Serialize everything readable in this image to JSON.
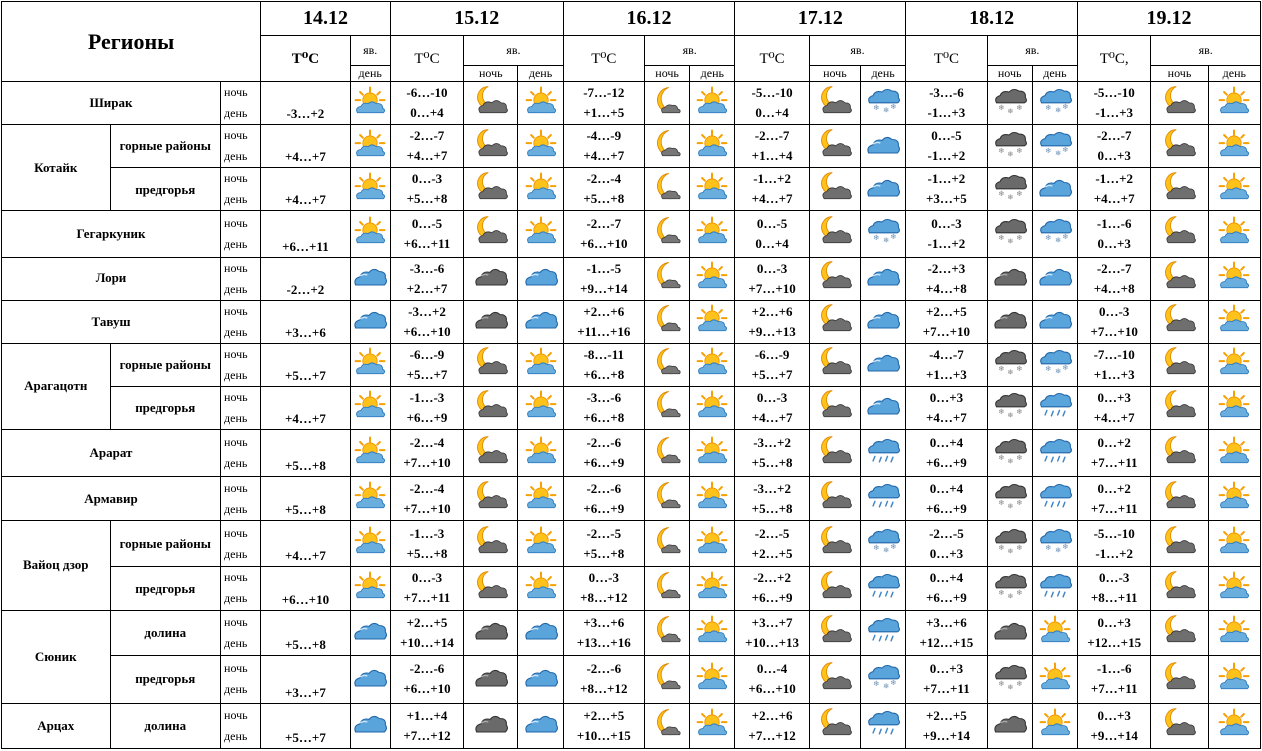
{
  "header": {
    "regions_label": "Регионы",
    "dates": [
      "14.12",
      "15.12",
      "16.12",
      "17.12",
      "18.12",
      "19.12"
    ],
    "temp_label": "T⁰C",
    "temp_label_last": "T⁰C,",
    "phenomena_label": "яв.",
    "night_label": "ночь",
    "day_label": "день"
  },
  "rows": [
    {
      "region": "Ширак",
      "sub": "",
      "first": "-3…+2",
      "first_icon": "sun-cloud-icon",
      "days": [
        {
          "t_night": "-6…-10",
          "t_day": "0…+4",
          "n_icon": "moon-cloud-icon",
          "d_icon": "sun-cloud-icon"
        },
        {
          "t_night": "-7…-12",
          "t_day": "+1…+5",
          "n_icon": "moon-icon",
          "d_icon": "sun-cloud-icon"
        },
        {
          "t_night": "-5…-10",
          "t_day": "0…+4",
          "n_icon": "moon-cloud-icon",
          "d_icon": "cloud-snow-icon"
        },
        {
          "t_night": "-3…-6",
          "t_day": "-1…+3",
          "n_icon": "dark-cloud-snow-icon",
          "d_icon": "cloud-snow-icon"
        },
        {
          "t_night": "-5…-10",
          "t_day": "-1…+3",
          "n_icon": "moon-cloud-icon",
          "d_icon": "sun-cloud-icon"
        }
      ]
    },
    {
      "region": "Котайк",
      "sub": "горные районы",
      "first": "+4…+7",
      "first_icon": "sun-cloud-icon",
      "days": [
        {
          "t_night": "-2…-7",
          "t_day": "+4…+7",
          "n_icon": "moon-cloud-icon",
          "d_icon": "sun-cloud-icon"
        },
        {
          "t_night": "-4…-9",
          "t_day": "+4…+7",
          "n_icon": "moon-icon",
          "d_icon": "sun-cloud-icon"
        },
        {
          "t_night": "-2…-7",
          "t_day": "+1…+4",
          "n_icon": "moon-cloud-icon",
          "d_icon": "cloud-icon"
        },
        {
          "t_night": "0…-5",
          "t_day": "-1…+2",
          "n_icon": "dark-cloud-snow-icon",
          "d_icon": "cloud-snow-icon"
        },
        {
          "t_night": "-2…-7",
          "t_day": "0…+3",
          "n_icon": "moon-cloud-icon",
          "d_icon": "sun-cloud-icon"
        }
      ]
    },
    {
      "region": "Котайк",
      "sub": "предгорья",
      "first": "+4…+7",
      "first_icon": "sun-cloud-icon",
      "days": [
        {
          "t_night": "0…-3",
          "t_day": "+5…+8",
          "n_icon": "moon-cloud-icon",
          "d_icon": "sun-cloud-icon"
        },
        {
          "t_night": "-2…-4",
          "t_day": "+5…+8",
          "n_icon": "moon-icon",
          "d_icon": "sun-cloud-icon"
        },
        {
          "t_night": "-1…+2",
          "t_day": "+4…+7",
          "n_icon": "moon-cloud-icon",
          "d_icon": "cloud-icon"
        },
        {
          "t_night": "-1…+2",
          "t_day": "+3…+5",
          "n_icon": "dark-cloud-snow-icon",
          "d_icon": "cloud-icon"
        },
        {
          "t_night": "-1…+2",
          "t_day": "+4…+7",
          "n_icon": "moon-cloud-icon",
          "d_icon": "sun-cloud-icon"
        }
      ]
    },
    {
      "region": "Гегаркуник",
      "sub": "",
      "first": "+6…+11",
      "first_icon": "sun-cloud-icon",
      "days": [
        {
          "t_night": "0…-5",
          "t_day": "+6…+11",
          "n_icon": "moon-cloud-icon",
          "d_icon": "sun-cloud-icon"
        },
        {
          "t_night": "-2…-7",
          "t_day": "+6…+10",
          "n_icon": "moon-icon",
          "d_icon": "sun-cloud-icon"
        },
        {
          "t_night": "0…-5",
          "t_day": "0…+4",
          "n_icon": "moon-cloud-icon",
          "d_icon": "cloud-snow-icon"
        },
        {
          "t_night": "0…-3",
          "t_day": "-1…+2",
          "n_icon": "dark-cloud-snow-icon",
          "d_icon": "cloud-snow-icon"
        },
        {
          "t_night": "-1…-6",
          "t_day": "0…+3",
          "n_icon": "moon-cloud-icon",
          "d_icon": "sun-cloud-icon"
        }
      ]
    },
    {
      "region": "Лори",
      "sub": "",
      "first": "-2…+2",
      "first_icon": "cloud-icon",
      "days": [
        {
          "t_night": "-3…-6",
          "t_day": "+2…+7",
          "n_icon": "dark-cloud-icon",
          "d_icon": "cloud-icon"
        },
        {
          "t_night": "-1…-5",
          "t_day": "+9…+14",
          "n_icon": "moon-icon",
          "d_icon": "sun-cloud-icon"
        },
        {
          "t_night": "0…-3",
          "t_day": "+7…+10",
          "n_icon": "moon-cloud-icon",
          "d_icon": "cloud-icon"
        },
        {
          "t_night": "-2…+3",
          "t_day": "+4…+8",
          "n_icon": "dark-cloud-icon",
          "d_icon": "cloud-icon"
        },
        {
          "t_night": "-2…-7",
          "t_day": "+4…+8",
          "n_icon": "moon-cloud-icon",
          "d_icon": "sun-cloud-icon"
        }
      ]
    },
    {
      "region": "Тавуш",
      "sub": "",
      "first": "+3…+6",
      "first_icon": "cloud-icon",
      "days": [
        {
          "t_night": "-3…+2",
          "t_day": "+6…+10",
          "n_icon": "dark-cloud-icon",
          "d_icon": "cloud-icon"
        },
        {
          "t_night": "+2…+6",
          "t_day": "+11…+16",
          "n_icon": "moon-icon",
          "d_icon": "sun-cloud-icon"
        },
        {
          "t_night": "+2…+6",
          "t_day": "+9…+13",
          "n_icon": "moon-cloud-icon",
          "d_icon": "cloud-icon"
        },
        {
          "t_night": "+2…+5",
          "t_day": "+7…+10",
          "n_icon": "dark-cloud-icon",
          "d_icon": "cloud-icon"
        },
        {
          "t_night": "0…-3",
          "t_day": "+7…+10",
          "n_icon": "moon-cloud-icon",
          "d_icon": "sun-cloud-icon"
        }
      ]
    },
    {
      "region": "Арагацотн",
      "sub": "горные районы",
      "first": "+5…+7",
      "first_icon": "sun-cloud-icon",
      "days": [
        {
          "t_night": "-6…-9",
          "t_day": "+5…+7",
          "n_icon": "moon-cloud-icon",
          "d_icon": "sun-cloud-icon"
        },
        {
          "t_night": "-8…-11",
          "t_day": "+6…+8",
          "n_icon": "moon-icon",
          "d_icon": "sun-cloud-icon"
        },
        {
          "t_night": "-6…-9",
          "t_day": "+5…+7",
          "n_icon": "moon-cloud-icon",
          "d_icon": "cloud-icon"
        },
        {
          "t_night": "-4…-7",
          "t_day": "+1…+3",
          "n_icon": "dark-cloud-snow-icon",
          "d_icon": "cloud-snow-icon"
        },
        {
          "t_night": "-7…-10",
          "t_day": "+1…+3",
          "n_icon": "moon-cloud-icon",
          "d_icon": "sun-cloud-icon"
        }
      ]
    },
    {
      "region": "Арагацотн",
      "sub": "предгорья",
      "first": "+4…+7",
      "first_icon": "sun-cloud-icon",
      "days": [
        {
          "t_night": "-1…-3",
          "t_day": "+6…+9",
          "n_icon": "moon-cloud-icon",
          "d_icon": "sun-cloud-icon"
        },
        {
          "t_night": "-3…-6",
          "t_day": "+6…+8",
          "n_icon": "moon-icon",
          "d_icon": "sun-cloud-icon"
        },
        {
          "t_night": "0…-3",
          "t_day": "+4…+7",
          "n_icon": "moon-cloud-icon",
          "d_icon": "cloud-icon"
        },
        {
          "t_night": "0…+3",
          "t_day": "+4…+7",
          "n_icon": "dark-cloud-snow-icon",
          "d_icon": "cloud-rain-icon"
        },
        {
          "t_night": "0…+3",
          "t_day": "+4…+7",
          "n_icon": "moon-cloud-icon",
          "d_icon": "sun-cloud-icon"
        }
      ]
    },
    {
      "region": "Арарат",
      "sub": "",
      "first": "+5…+8",
      "first_icon": "sun-cloud-icon",
      "days": [
        {
          "t_night": "-2…-4",
          "t_day": "+7…+10",
          "n_icon": "moon-cloud-icon",
          "d_icon": "sun-cloud-icon"
        },
        {
          "t_night": "-2…-6",
          "t_day": "+6…+9",
          "n_icon": "moon-icon",
          "d_icon": "sun-cloud-icon"
        },
        {
          "t_night": "-3…+2",
          "t_day": "+5…+8",
          "n_icon": "moon-cloud-icon",
          "d_icon": "cloud-rain-icon"
        },
        {
          "t_night": "0…+4",
          "t_day": "+6…+9",
          "n_icon": "dark-cloud-snow-icon",
          "d_icon": "cloud-rain-icon"
        },
        {
          "t_night": "0…+2",
          "t_day": "+7…+11",
          "n_icon": "moon-cloud-icon",
          "d_icon": "sun-cloud-icon"
        }
      ]
    },
    {
      "region": "Армавир",
      "sub": "",
      "first": "+5…+8",
      "first_icon": "sun-cloud-icon",
      "days": [
        {
          "t_night": "-2…-4",
          "t_day": "+7…+10",
          "n_icon": "moon-cloud-icon",
          "d_icon": "sun-cloud-icon"
        },
        {
          "t_night": "-2…-6",
          "t_day": "+6…+9",
          "n_icon": "moon-icon",
          "d_icon": "sun-cloud-icon"
        },
        {
          "t_night": "-3…+2",
          "t_day": "+5…+8",
          "n_icon": "moon-cloud-icon",
          "d_icon": "cloud-rain-icon"
        },
        {
          "t_night": "0…+4",
          "t_day": "+6…+9",
          "n_icon": "dark-cloud-snow-icon",
          "d_icon": "cloud-rain-icon"
        },
        {
          "t_night": "0…+2",
          "t_day": "+7…+11",
          "n_icon": "moon-cloud-icon",
          "d_icon": "sun-cloud-icon"
        }
      ]
    },
    {
      "region": "Вайоц дзор",
      "sub": "горные районы",
      "first": "+4…+7",
      "first_icon": "sun-cloud-icon",
      "days": [
        {
          "t_night": "-1…-3",
          "t_day": "+5…+8",
          "n_icon": "moon-cloud-icon",
          "d_icon": "sun-cloud-icon"
        },
        {
          "t_night": "-2…-5",
          "t_day": "+5…+8",
          "n_icon": "moon-icon",
          "d_icon": "sun-cloud-icon"
        },
        {
          "t_night": "-2…-5",
          "t_day": "+2…+5",
          "n_icon": "moon-cloud-icon",
          "d_icon": "cloud-snow-icon"
        },
        {
          "t_night": "-2…-5",
          "t_day": "0…+3",
          "n_icon": "dark-cloud-snow-icon",
          "d_icon": "cloud-snow-icon"
        },
        {
          "t_night": "-5…-10",
          "t_day": "-1…+2",
          "n_icon": "moon-cloud-icon",
          "d_icon": "sun-cloud-icon"
        }
      ]
    },
    {
      "region": "Вайоц дзор",
      "sub": "предгорья",
      "first": "+6…+10",
      "first_icon": "sun-cloud-icon",
      "days": [
        {
          "t_night": "0…-3",
          "t_day": "+7…+11",
          "n_icon": "moon-cloud-icon",
          "d_icon": "sun-cloud-icon"
        },
        {
          "t_night": "0…-3",
          "t_day": "+8…+12",
          "n_icon": "moon-icon",
          "d_icon": "sun-cloud-icon"
        },
        {
          "t_night": "-2…+2",
          "t_day": "+6…+9",
          "n_icon": "moon-cloud-icon",
          "d_icon": "cloud-rain-icon"
        },
        {
          "t_night": "0…+4",
          "t_day": "+6…+9",
          "n_icon": "dark-cloud-snow-icon",
          "d_icon": "cloud-rain-icon"
        },
        {
          "t_night": "0…-3",
          "t_day": "+8…+11",
          "n_icon": "moon-cloud-icon",
          "d_icon": "sun-cloud-icon"
        }
      ]
    },
    {
      "region": "Сюник",
      "sub": "долина",
      "first": "+5…+8",
      "first_icon": "cloud-icon",
      "days": [
        {
          "t_night": "+2…+5",
          "t_day": "+10…+14",
          "n_icon": "dark-cloud-icon",
          "d_icon": "cloud-icon"
        },
        {
          "t_night": "+3…+6",
          "t_day": "+13…+16",
          "n_icon": "moon-icon",
          "d_icon": "sun-cloud-icon"
        },
        {
          "t_night": "+3…+7",
          "t_day": "+10…+13",
          "n_icon": "moon-cloud-icon",
          "d_icon": "cloud-rain-icon"
        },
        {
          "t_night": "+3…+6",
          "t_day": "+12…+15",
          "n_icon": "dark-cloud-icon",
          "d_icon": "sun-cloud-icon"
        },
        {
          "t_night": "0…+3",
          "t_day": "+12…+15",
          "n_icon": "moon-cloud-icon",
          "d_icon": "sun-cloud-icon"
        }
      ]
    },
    {
      "region": "Сюник",
      "sub": "предгорья",
      "first": "+3…+7",
      "first_icon": "cloud-icon",
      "days": [
        {
          "t_night": "-2…-6",
          "t_day": "+6…+10",
          "n_icon": "dark-cloud-icon",
          "d_icon": "cloud-icon"
        },
        {
          "t_night": "-2…-6",
          "t_day": "+8…+12",
          "n_icon": "moon-icon",
          "d_icon": "sun-cloud-icon"
        },
        {
          "t_night": "0…-4",
          "t_day": "+6…+10",
          "n_icon": "moon-cloud-icon",
          "d_icon": "cloud-snow-icon"
        },
        {
          "t_night": "0…+3",
          "t_day": "+7…+11",
          "n_icon": "dark-cloud-snow-icon",
          "d_icon": "sun-cloud-icon"
        },
        {
          "t_night": "-1…-6",
          "t_day": "+7…+11",
          "n_icon": "moon-cloud-icon",
          "d_icon": "sun-cloud-icon"
        }
      ]
    },
    {
      "region": "Арцах",
      "sub": "долина",
      "first": "+5…+7",
      "first_icon": "cloud-icon",
      "days": [
        {
          "t_night": "+1…+4",
          "t_day": "+7…+12",
          "n_icon": "dark-cloud-icon",
          "d_icon": "cloud-icon"
        },
        {
          "t_night": "+2…+5",
          "t_day": "+10…+15",
          "n_icon": "moon-icon",
          "d_icon": "sun-cloud-icon"
        },
        {
          "t_night": "+2…+6",
          "t_day": "+7…+12",
          "n_icon": "moon-cloud-icon",
          "d_icon": "cloud-rain-icon"
        },
        {
          "t_night": "+2…+5",
          "t_day": "+9…+14",
          "n_icon": "dark-cloud-icon",
          "d_icon": "sun-cloud-icon"
        },
        {
          "t_night": "0…+3",
          "t_day": "+9…+14",
          "n_icon": "moon-cloud-icon",
          "d_icon": "sun-cloud-icon"
        }
      ]
    }
  ]
}
